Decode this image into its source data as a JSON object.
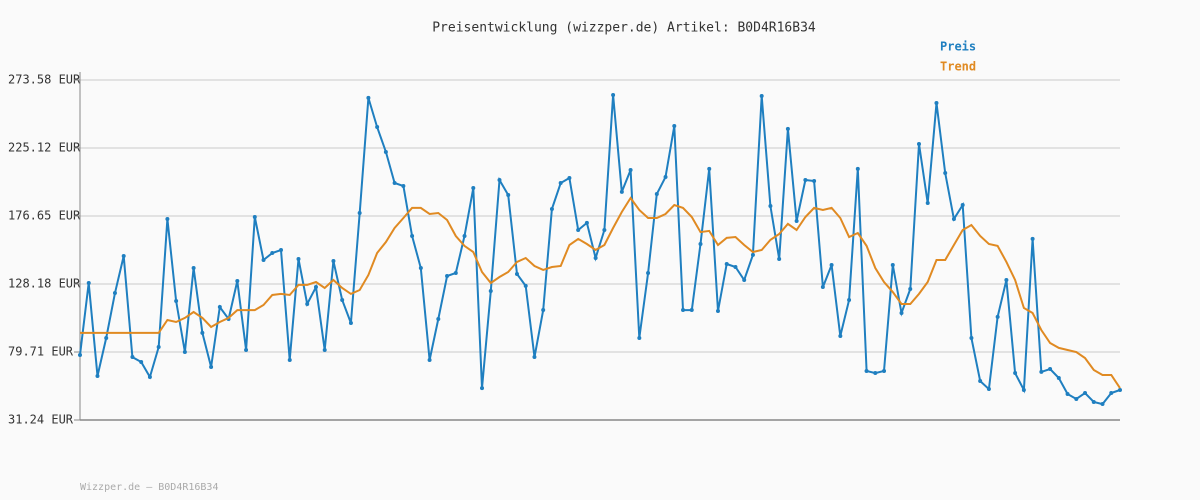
{
  "chart_data": {
    "type": "line",
    "title": "Preisentwicklung (wizzper.de) Artikel: B0D4R16B34",
    "footer": "Wizzper.de – B0D4R16B34",
    "ylim": [
      31.24,
      273.58
    ],
    "yticks": [
      {
        "value": 31.24,
        "label": "31.24 EUR"
      },
      {
        "value": 79.71,
        "label": "79.71 EUR"
      },
      {
        "value": 128.18,
        "label": "128.18 EUR"
      },
      {
        "value": 176.65,
        "label": "176.65 EUR"
      },
      {
        "value": 225.12,
        "label": "225.12 EUR"
      },
      {
        "value": 273.58,
        "label": "273.58 EUR"
      }
    ],
    "grid": true,
    "series": [
      {
        "name": "Preis",
        "color": "#1f7fc0",
        "markers": true,
        "values": [
          77.6,
          128.9,
          62.6,
          89.7,
          121.8,
          148.1,
          76.1,
          72.6,
          61.9,
          83.3,
          174.5,
          116.1,
          79.7,
          139.6,
          93.3,
          69.0,
          111.8,
          103.2,
          130.3,
          81.1,
          175.9,
          145.3,
          150.3,
          152.4,
          74.0,
          146.0,
          113.9,
          126.0,
          81.1,
          144.6,
          116.8,
          100.4,
          178.8,
          260.8,
          240.1,
          222.3,
          200.2,
          198.0,
          162.4,
          139.6,
          74.0,
          103.2,
          133.9,
          136.0,
          162.4,
          196.6,
          54.0,
          123.2,
          202.3,
          191.6,
          135.3,
          126.8,
          76.1,
          109.6,
          181.6,
          200.2,
          203.7,
          166.7,
          171.7,
          146.7,
          166.7,
          262.9,
          193.8,
          209.4,
          89.7,
          136.0,
          192.3,
          204.4,
          240.8,
          109.6,
          109.6,
          156.7,
          210.2,
          108.9,
          142.4,
          140.3,
          131.0,
          148.9,
          262.2,
          183.8,
          146.0,
          238.7,
          173.1,
          202.3,
          201.6,
          126.0,
          141.7,
          91.1,
          116.8,
          210.2,
          66.2,
          64.7,
          66.2,
          141.7,
          107.5,
          124.6,
          228.0,
          185.9,
          257.2,
          207.3,
          174.5,
          184.5,
          89.7,
          59.0,
          53.3,
          104.7,
          131.0,
          64.7,
          52.6,
          160.3,
          65.5,
          67.6,
          61.2,
          49.8,
          46.2,
          50.5,
          44.1,
          42.6,
          50.5,
          52.6
        ]
      },
      {
        "name": "Trend",
        "color": "#e08a22",
        "markers": false,
        "values": [
          93.3,
          93.3,
          93.3,
          93.3,
          93.3,
          93.3,
          93.3,
          93.3,
          93.3,
          93.3,
          102.5,
          101.1,
          104.0,
          108.2,
          104.0,
          97.5,
          101.1,
          104.0,
          109.6,
          109.6,
          109.6,
          113.2,
          120.3,
          121.1,
          120.3,
          127.5,
          127.5,
          129.6,
          125.3,
          131.0,
          125.3,
          121.1,
          123.9,
          134.6,
          150.3,
          158.1,
          168.1,
          175.2,
          182.4,
          182.4,
          178.1,
          178.8,
          173.8,
          162.4,
          155.3,
          151.0,
          136.7,
          128.9,
          133.2,
          136.7,
          143.9,
          146.7,
          141.0,
          138.2,
          140.3,
          141.0,
          156.0,
          160.3,
          156.7,
          152.4,
          156.0,
          168.1,
          179.5,
          189.5,
          180.9,
          175.2,
          175.2,
          178.1,
          184.5,
          182.4,
          175.9,
          165.2,
          166.0,
          156.0,
          161.0,
          161.7,
          156.0,
          151.0,
          152.4,
          159.6,
          163.8,
          171.0,
          166.7,
          175.9,
          182.4,
          180.9,
          182.4,
          175.2,
          161.7,
          164.5,
          155.3,
          139.6,
          129.6,
          122.5,
          113.9,
          113.9,
          121.1,
          129.6,
          145.3,
          145.3,
          156.0,
          166.7,
          170.2,
          162.4,
          156.7,
          155.3,
          143.9,
          131.0,
          111.1,
          107.5,
          95.4,
          86.1,
          82.6,
          81.1,
          79.7,
          75.4,
          66.9,
          63.3,
          63.3,
          54.0
        ]
      }
    ]
  }
}
